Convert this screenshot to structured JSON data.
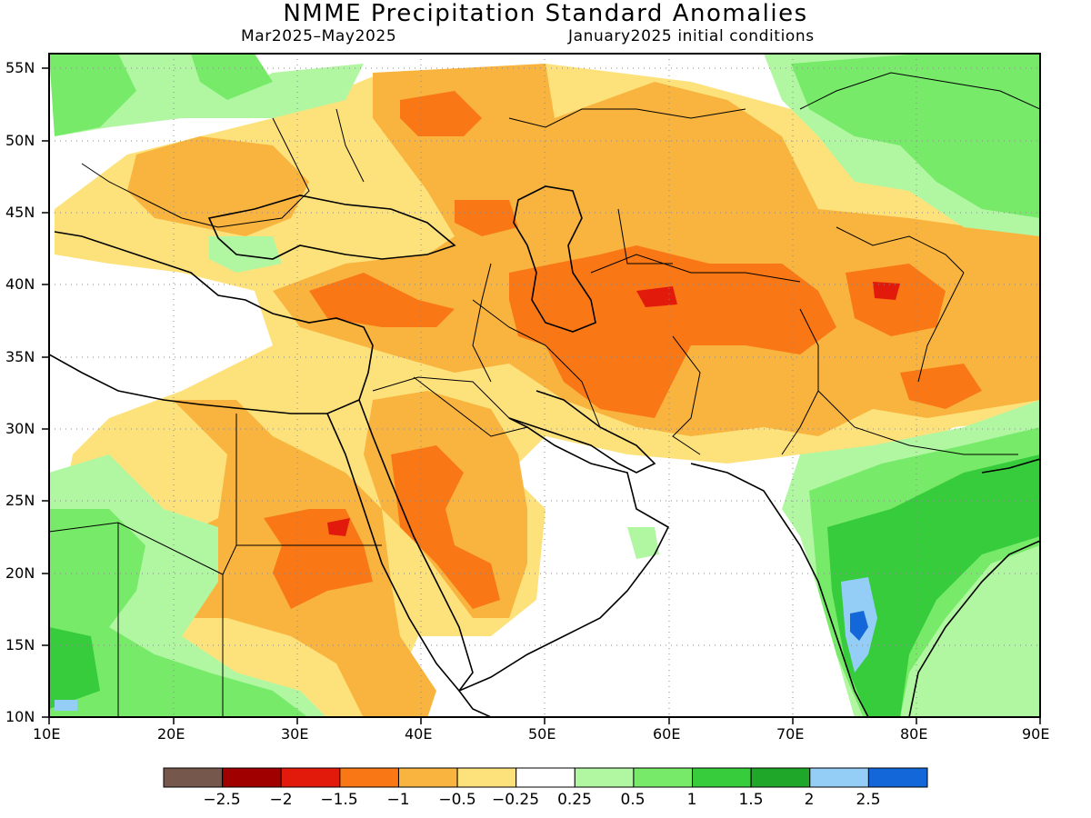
{
  "header": {
    "title": "NMME Precipitation Standard Anomalies",
    "period": "Mar2025–May2025",
    "init": "January2025 initial conditions"
  },
  "map": {
    "lon_range": [
      10,
      90
    ],
    "lat_range": [
      10,
      56
    ],
    "lon_ticks": [
      "10E",
      "20E",
      "30E",
      "40E",
      "50E",
      "60E",
      "70E",
      "80E",
      "90E"
    ],
    "lat_ticks": [
      "55N",
      "50N",
      "45N",
      "40N",
      "35N",
      "30N",
      "25N",
      "20N",
      "15N",
      "10N"
    ],
    "grid": "dotted"
  },
  "colorbar": {
    "labels": [
      "−2.5",
      "−2",
      "−1.5",
      "−1",
      "−0.5",
      "−0.25",
      "0.25",
      "0.5",
      "1",
      "1.5",
      "2",
      "2.5"
    ],
    "colors": [
      "#76574b",
      "#a10000",
      "#e11a0b",
      "#f97714",
      "#f8b43e",
      "#fde27c",
      "#ffffff",
      "#b1f7a2",
      "#77eb69",
      "#36cc3c",
      "#1fa72a",
      "#94cdf5",
      "#1467d8"
    ]
  }
}
